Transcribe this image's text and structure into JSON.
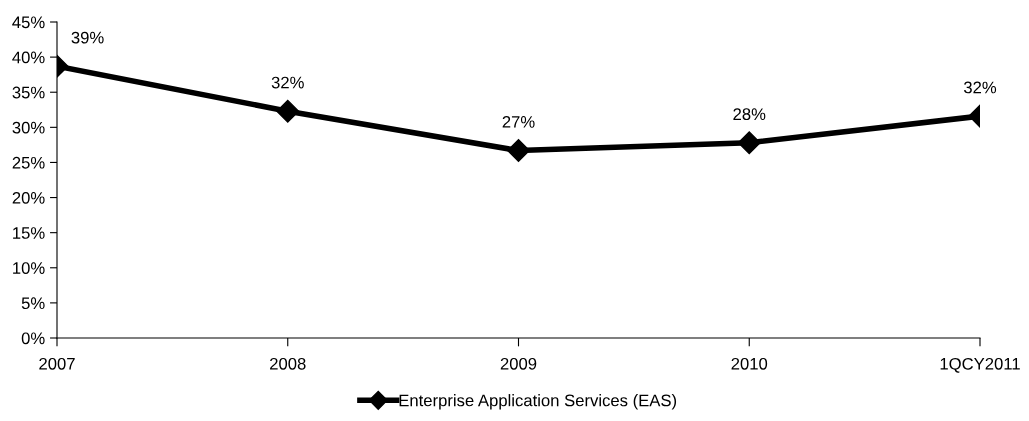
{
  "chart_data": {
    "type": "line",
    "categories": [
      "2007",
      "2008",
      "2009",
      "2010",
      "1QCY2011"
    ],
    "series": [
      {
        "name": "Enterprise Application Services (EAS)",
        "color": "#000000",
        "values": [
          38.7,
          32.3,
          26.7,
          27.8,
          31.6
        ],
        "value_labels": [
          "39%",
          "32%",
          "27%",
          "28%",
          "32%"
        ]
      }
    ],
    "ylim": [
      0,
      45
    ],
    "yticks": [
      {
        "value": 0,
        "label": "0%"
      },
      {
        "value": 5,
        "label": "5%"
      },
      {
        "value": 10,
        "label": "10%"
      },
      {
        "value": 15,
        "label": "15%"
      },
      {
        "value": 20,
        "label": "20%"
      },
      {
        "value": 25,
        "label": "25%"
      },
      {
        "value": 30,
        "label": "30%"
      },
      {
        "value": 35,
        "label": "35%"
      },
      {
        "value": 40,
        "label": "40%"
      },
      {
        "value": 45,
        "label": "45%"
      }
    ],
    "grid": false,
    "legend": "bottom",
    "marker": "diamond",
    "line_style": "solid"
  }
}
